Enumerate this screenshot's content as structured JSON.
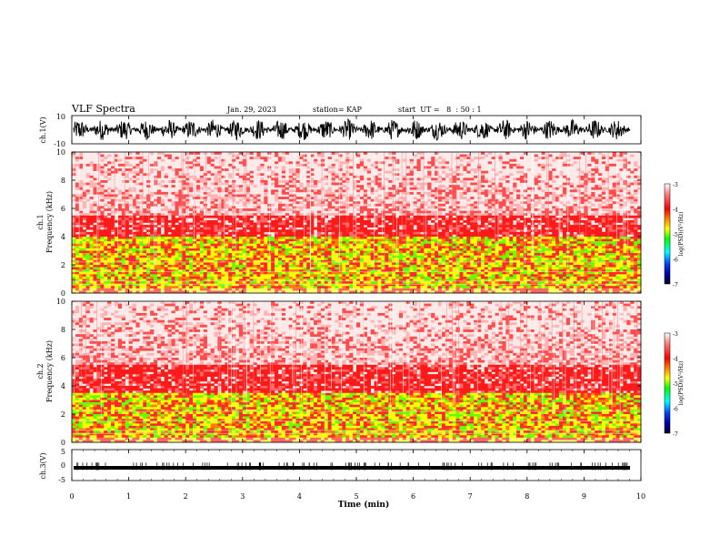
{
  "header": {
    "title": "VLF Spectra",
    "date": "Jan. 29, 2023",
    "station": "station= KAP",
    "start": "start  UT =   8  : 50 : 1"
  },
  "colors": {
    "hot_red": "#ff1a1a",
    "pink_bg": "#ffe5e5",
    "yellow": "#ffff00",
    "green": "#00e600",
    "blue": "#0000ff",
    "dark_navy": "#000040"
  },
  "chart_data": [
    {
      "type": "line",
      "panel": "ch1-waveform",
      "ylabel": "ch.1(V)",
      "ylim": [
        -10,
        10
      ],
      "yticks": [
        "10",
        "-10"
      ],
      "xlim": [
        0,
        10
      ],
      "description_values": "dense waveform oscillating roughly between -8 and 8 V"
    },
    {
      "type": "heatmap",
      "panel": "ch1-spectrogram",
      "ylabel": "ch.1\nFrequency (kHz)",
      "ylabel_lines": [
        "ch.1",
        "Frequency (kHz)"
      ],
      "ylim": [
        0,
        10
      ],
      "yticks": [
        "0",
        "2",
        "4",
        "6",
        "8",
        "10"
      ],
      "xlim": [
        0,
        10
      ],
      "colorbar": {
        "label": "log(PSD)(V²/Hz)",
        "ticks": [
          "-3",
          "-4",
          "-5",
          "-6",
          "-7"
        ],
        "range": [
          -7,
          -3
        ]
      }
    },
    {
      "type": "heatmap",
      "panel": "ch2-spectrogram",
      "ylabel_lines": [
        "ch.2",
        "Frequency (kHz)"
      ],
      "ylim": [
        0,
        10
      ],
      "yticks": [
        "0",
        "2",
        "4",
        "6",
        "8",
        "10"
      ],
      "xlim": [
        0,
        10
      ],
      "colorbar": {
        "label": "log(PSD)(V²/Hz)",
        "ticks": [
          "-3",
          "-4",
          "-5",
          "-6",
          "-7"
        ],
        "range": [
          -7,
          -3
        ]
      }
    },
    {
      "type": "line",
      "panel": "ch3-waveform",
      "ylabel": "ch.3(V)",
      "ylim": [
        -5,
        5
      ],
      "yticks": [
        "5",
        "0",
        "-5"
      ],
      "xlim": [
        0,
        10
      ],
      "xticks": [
        "0",
        "1",
        "2",
        "3",
        "4",
        "5",
        "6",
        "7",
        "8",
        "9",
        "10"
      ],
      "xlabel": "Time (min)"
    }
  ]
}
